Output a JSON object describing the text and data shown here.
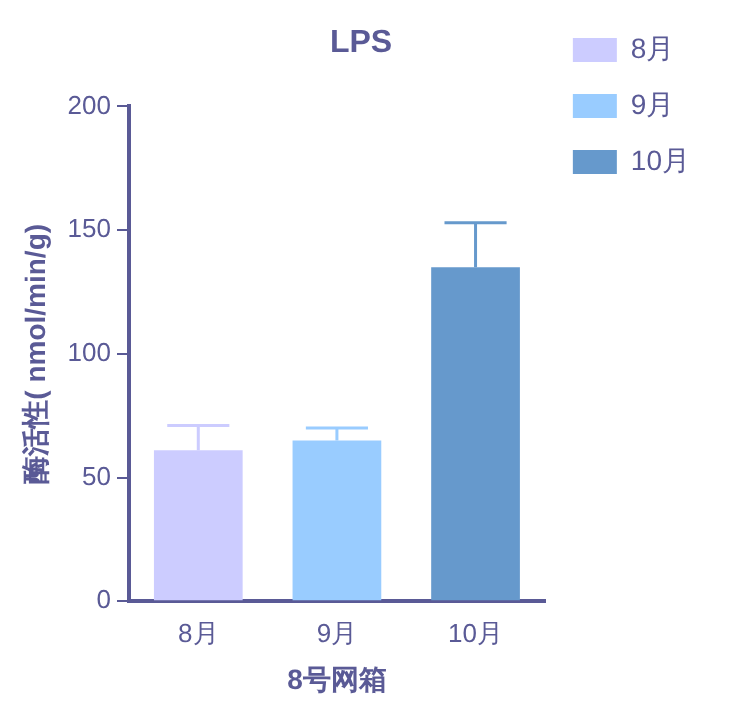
{
  "chart_data": {
    "type": "bar",
    "title": "LPS",
    "xlabel": "8号网箱",
    "ylabel": "酶活性( nmol/min/g)",
    "categories": [
      "8月",
      "9月",
      "10月"
    ],
    "series": [
      {
        "name": "8月",
        "color": "#ccccff",
        "values": [
          61,
          null,
          null
        ],
        "errors": [
          [
            61,
            71
          ],
          null,
          null
        ]
      },
      {
        "name": "9月",
        "color": "#99ccff",
        "values": [
          null,
          65,
          null
        ],
        "errors": [
          null,
          [
            65,
            70
          ],
          null
        ]
      },
      {
        "name": "10月",
        "color": "#6699cc",
        "values": [
          null,
          null,
          135
        ],
        "errors": [
          null,
          null,
          [
            135,
            153
          ]
        ]
      }
    ],
    "ylim": [
      0,
      200
    ],
    "yticks": [
      0,
      50,
      100,
      150,
      200
    ],
    "grid": false,
    "legend": "top right"
  }
}
